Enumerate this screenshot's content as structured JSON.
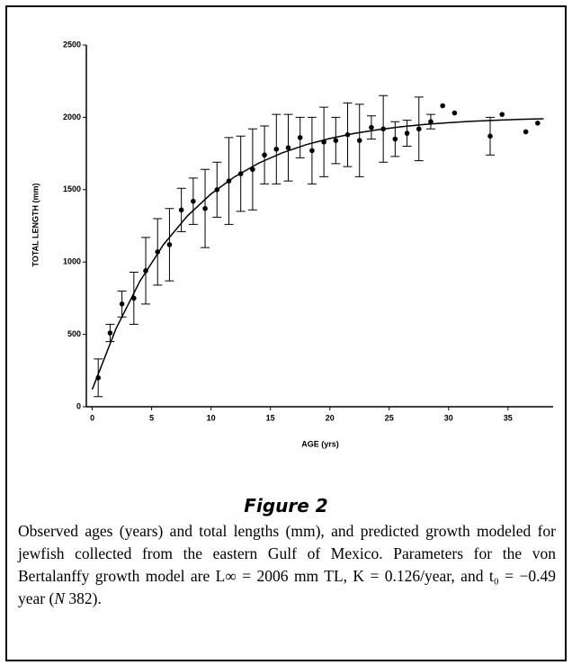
{
  "chart_data": {
    "type": "scatter",
    "y_label": "TOTAL LENGTH (mm)",
    "x_label": "AGE (yrs)",
    "xlim": [
      -0.5,
      38.8
    ],
    "ylim": [
      0,
      2500
    ],
    "xticks": [
      0,
      5,
      10,
      15,
      20,
      25,
      30,
      35
    ],
    "yticks": [
      0,
      500,
      1000,
      1500,
      2000,
      2500
    ],
    "color": "#000000",
    "x": [
      0.5,
      1.5,
      2.5,
      3.5,
      4.5,
      5.5,
      6.5,
      7.5,
      8.5,
      9.5,
      10.5,
      11.5,
      12.5,
      13.5,
      14.5,
      15.5,
      16.5,
      17.5,
      18.5,
      19.5,
      20.5,
      21.5,
      22.5,
      23.5,
      24.5,
      25.5,
      26.5,
      27.5,
      28.5,
      29.5,
      30.5,
      33.5,
      34.5,
      36.5,
      37.5
    ],
    "values": [
      200,
      510,
      710,
      750,
      940,
      1070,
      1120,
      1360,
      1420,
      1370,
      1500,
      1560,
      1610,
      1640,
      1740,
      1780,
      1790,
      1860,
      1770,
      1830,
      1840,
      1880,
      1840,
      1930,
      1920,
      1850,
      1890,
      1920,
      1970,
      2080,
      2030,
      1870,
      2020,
      1900,
      1960
    ],
    "errors": [
      130,
      60,
      90,
      180,
      230,
      230,
      250,
      150,
      160,
      270,
      190,
      300,
      260,
      280,
      200,
      240,
      230,
      140,
      230,
      240,
      160,
      220,
      250,
      80,
      230,
      120,
      90,
      220,
      50,
      null,
      null,
      130,
      null,
      null,
      null
    ],
    "curve": {
      "x": [
        0,
        2,
        4,
        6,
        8,
        10,
        12,
        14,
        16,
        18,
        20,
        22,
        24,
        26,
        28,
        30,
        32,
        34,
        36,
        38
      ],
      "values": [
        120,
        540,
        866,
        1121,
        1318,
        1471,
        1590,
        1683,
        1755,
        1811,
        1854,
        1888,
        1914,
        1935,
        1951,
        1963,
        1973,
        1980,
        1986,
        1990
      ]
    }
  },
  "figure": {
    "label": "Figure 2",
    "caption": [
      "Observed ages (years) and total lengths (mm), and predicted growth modeled for jewfish collected from the eastern Gulf of Mexico. Parameters for the von Bertalanffy growth model are L∞ = 2006 mm TL, K = 0.126/year, and t₀ = −0.49 year (",
      "N",
      " 382)."
    ]
  }
}
